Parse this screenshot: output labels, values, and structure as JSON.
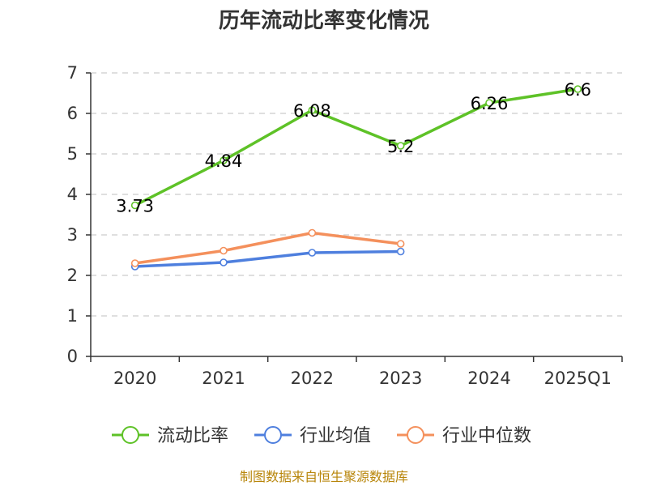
{
  "chart_data": {
    "type": "line",
    "title": "历年流动比率变化情况",
    "categories": [
      "2020",
      "2021",
      "2022",
      "2023",
      "2024",
      "2025Q1"
    ],
    "ylim": [
      0,
      7
    ],
    "yticks": [
      "0",
      "1",
      "2",
      "3",
      "4",
      "5",
      "6",
      "7"
    ],
    "grid": true,
    "legend_position": "bottom",
    "series": [
      {
        "name": "流动比率",
        "color": "#5ec227",
        "values": [
          3.73,
          4.84,
          6.08,
          5.2,
          6.26,
          6.6
        ],
        "labels": [
          "3.73",
          "4.84",
          "6.08",
          "5.2",
          "6.26",
          "6.6"
        ]
      },
      {
        "name": "行业均值",
        "color": "#4e7fde",
        "values": [
          2.22,
          2.32,
          2.56,
          2.59,
          null,
          null
        ]
      },
      {
        "name": "行业中位数",
        "color": "#f4905c",
        "values": [
          2.3,
          2.61,
          3.05,
          2.78,
          null,
          null
        ]
      }
    ],
    "source": "制图数据来自恒生聚源数据库"
  }
}
